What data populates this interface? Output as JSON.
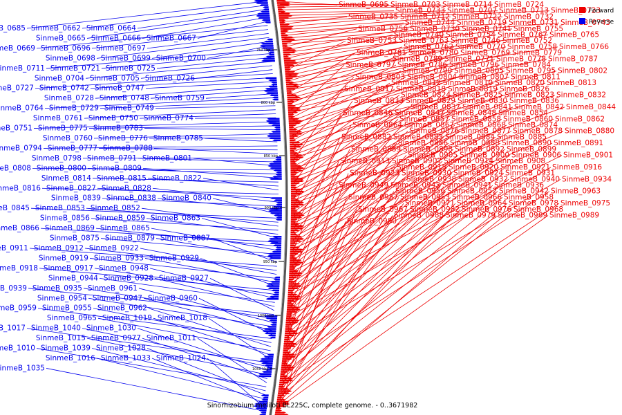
{
  "caption": "Sinorhizobium meliloti BL225C, complete genome. - 0..3671982",
  "legend": [
    {
      "label": "Forward",
      "color": "#ee0000"
    },
    {
      "label": "Reverse",
      "color": "#0000ee"
    }
  ],
  "scale_marks": [
    "750 kbp",
    "800 kbp",
    "850 kbp",
    "900 kbp",
    "950 kbp",
    "1000 kbp",
    "1050 kbp"
  ],
  "left_labels": [
    "SinmeB_0685",
    "SinmeB_0662",
    "SinmeB_0664",
    "SinmeB_0665",
    "SinmeB_0666",
    "SinmeB_0667",
    "SinmeB_0669",
    "SinmeB_0696",
    "SinmeB_0697",
    "SinmeB_0698",
    "SinmeB_0699",
    "SinmeB_0700",
    "SinmeB_0711",
    "SinmeB_0721",
    "SinmeB_0725",
    "SinmeB_0704",
    "SinmeB_0705",
    "SinmeB_0726",
    "SinmeB_0727",
    "SinmeB_0742",
    "SinmeB_0747",
    "SinmeB_0728",
    "SinmeB_0748",
    "SinmeB_0759",
    "SinmeB_0764",
    "SinmeB_0729",
    "SinmeB_0749",
    "SinmeB_0761",
    "SinmeB_0750",
    "SinmeB_0774",
    "SinmeB_0751",
    "SinmeB_0775",
    "SinmeB_0783",
    "SinmeB_0760",
    "SinmeB_0776",
    "SinmeB_0785",
    "SinmeB_0794",
    "SinmeB_0777",
    "SinmeB_0788",
    "SinmeB_0798",
    "SinmeB_0791",
    "SinmeB_0801",
    "SinmeB_0808",
    "SinmeB_0800",
    "SinmeB_0809",
    "SinmeB_0814",
    "SinmeB_0815",
    "SinmeB_0822",
    "SinmeB_0816",
    "SinmeB_0827",
    "SinmeB_0828",
    "SinmeB_0839",
    "SinmeB_0838",
    "SinmeB_0840",
    "SinmeB_0845",
    "SinmeB_0853",
    "SinmeB_0852",
    "SinmeB_0856",
    "SinmeB_0859",
    "SinmeB_0863",
    "SinmeB_0866",
    "SinmeB_0869",
    "SinmeB_0865",
    "SinmeB_0875",
    "SinmeB_0879",
    "SinmeB_0887",
    "SinmeB_0911",
    "SinmeB_0912",
    "SinmeB_0922",
    "SinmeB_0919",
    "SinmeB_0933",
    "SinmeB_0929",
    "SinmeB_0918",
    "SinmeB_0917",
    "SinmeB_0948",
    "SinmeB_0944",
    "SinmeB_0928",
    "SinmeB_0927",
    "SinmeB_0939",
    "SinmeB_0935",
    "SinmeB_0961",
    "SinmeB_0954",
    "SinmeB_0947",
    "SinmeB_0960",
    "SinmeB_0959",
    "SinmeB_0955",
    "SinmeB_0962",
    "SinmeB_0965",
    "SinmeB_1019",
    "SinmeB_1018",
    "SinmeB_1017",
    "SinmeB_1040",
    "SinmeB_1030",
    "SinmeB_1015",
    "SinmeB_0977",
    "SinmeB_1011",
    "SinmeB_1010",
    "SinmeB_1039",
    "SinmeB_1028",
    "SinmeB_1016",
    "SinmeB_1033",
    "SinmeB_1024",
    "SinmeB_1035"
  ],
  "right_labels": [
    "SinmeB_0695",
    "SinmeB_0703",
    "SinmeB_0714",
    "SinmeB_0724",
    "SinmeB_0733",
    "SinmeB_0707",
    "SinmeB_0713",
    "SinmeB_0723",
    "SinmeB_0735",
    "SinmeB_0712",
    "SinmeB_0722",
    "SinmeB_0732",
    "SinmeB_0744",
    "SinmeB_0719",
    "SinmeB_0731",
    "SinmeB_0743",
    "SinmeB_0756",
    "SinmeB_0730",
    "SinmeB_0741",
    "SinmeB_0755",
    "SinmeB_0740",
    "SinmeB_0754",
    "SinmeB_0767",
    "SinmeB_0765",
    "SinmeB_0753",
    "SinmeB_0763",
    "SinmeB_0746",
    "SinmeB_0752",
    "SinmeB_0762",
    "SinmeB_0770",
    "SinmeB_0758",
    "SinmeB_0766",
    "SinmeB_0781",
    "SinmeB_0780",
    "SinmeB_0769",
    "SinmeB_0779",
    "SinmeB_0789",
    "SinmeB_0771",
    "SinmeB_0778",
    "SinmeB_0787",
    "SinmeB_0797",
    "SinmeB_0786",
    "SinmeB_0796",
    "SinmeB_0784",
    "SinmeB_0790",
    "SinmeB_0805",
    "SinmeB_0795",
    "SinmeB_0802",
    "SinmeB_0803",
    "SinmeB_0804",
    "SinmeB_0807",
    "SinmeB_0811",
    "SinmeB_0812",
    "SinmeB_0810",
    "SinmeB_0820",
    "SinmeB_0813",
    "SinmeB_0817",
    "SinmeB_0818",
    "SinmeB_0819",
    "SinmeB_0826",
    "SinmeB_0824",
    "SinmeB_0825",
    "SinmeB_0823",
    "SinmeB_0832",
    "SinmeB_0833",
    "SinmeB_0829",
    "SinmeB_0830",
    "SinmeB_0836",
    "SinmeB_0837",
    "SinmeB_0841",
    "SinmeB_0842",
    "SinmeB_0844",
    "SinmeB_0846",
    "SinmeB_0847",
    "SinmeB_0848",
    "SinmeB_0854",
    "SinmeB_0857",
    "SinmeB_0858",
    "SinmeB_0860",
    "SinmeB_0862",
    "SinmeB_0864",
    "SinmeB_0867",
    "SinmeB_0868",
    "SinmeB_0874",
    "SinmeB_0876",
    "SinmeB_0877",
    "SinmeB_0878",
    "SinmeB_0880",
    "SinmeB_0882",
    "SinmeB_0883",
    "SinmeB_0884",
    "SinmeB_0885",
    "SinmeB_0886",
    "SinmeB_0888",
    "SinmeB_0890",
    "SinmeB_0891",
    "SinmeB_0889",
    "SinmeB_0898",
    "SinmeB_0892",
    "SinmeB_0899",
    "SinmeB_0905",
    "SinmeB_0900",
    "SinmeB_0906",
    "SinmeB_0901",
    "SinmeB_0913",
    "SinmeB_0907",
    "SinmeB_0914",
    "SinmeB_0908",
    "SinmeB_0915",
    "SinmeB_0920",
    "SinmeB_0921",
    "SinmeB_0916",
    "SinmeB_0923",
    "SinmeB_0930",
    "SinmeB_0924",
    "SinmeB_0931",
    "SinmeB_0938",
    "SinmeB_0932",
    "SinmeB_0940",
    "SinmeB_0934",
    "SinmeB_0949",
    "SinmeB_0943",
    "SinmeB_0941",
    "SinmeB_0936",
    "SinmeB_0956",
    "SinmeB_0952",
    "SinmeB_0942",
    "SinmeB_0963",
    "SinmeB_0957",
    "SinmeB_0953",
    "SinmeB_0966",
    "SinmeB_0958",
    "SinmeB_0971",
    "SinmeB_0964",
    "SinmeB_0978",
    "SinmeB_0975",
    "SinmeB_0967",
    "SinmeB_0982",
    "SinmeB_0976",
    "SinmeB_0968",
    "SinmeB_0988",
    "SinmeB_0979",
    "SinmeB_0969",
    "SinmeB_0989",
    "SinmeB_0980"
  ]
}
